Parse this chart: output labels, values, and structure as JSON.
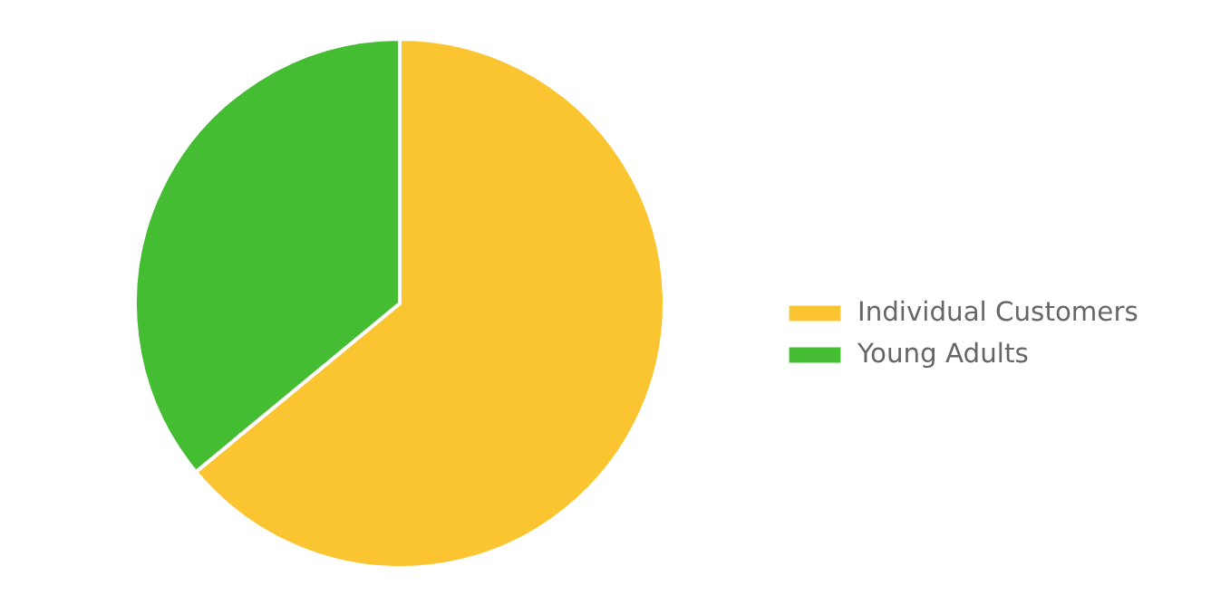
{
  "chart_data": {
    "type": "pie",
    "categories": [
      "Individual Customers",
      "Young Adults"
    ],
    "values": [
      64,
      36
    ],
    "colors": [
      "#fbc531",
      "#44bd32"
    ],
    "legend": "right"
  }
}
